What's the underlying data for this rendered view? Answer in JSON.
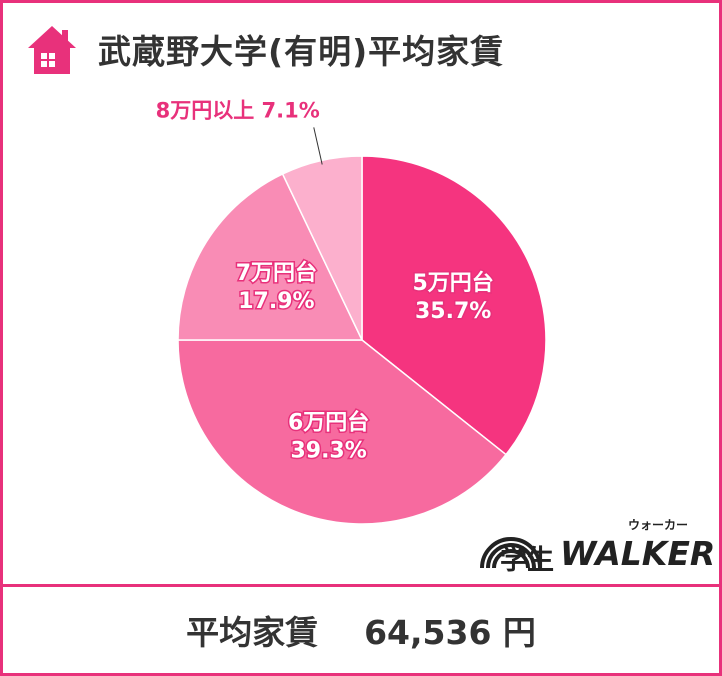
{
  "header": {
    "title": "武蔵野大学(有明)平均家賃",
    "icon": "house-icon"
  },
  "colors": {
    "frame": "#e8317b",
    "accent": "#e8317b"
  },
  "chart_data": {
    "type": "pie",
    "slices": [
      {
        "label": "5万円台",
        "value": 35.7,
        "value_label": "35.7%",
        "color": "#f5347f"
      },
      {
        "label": "6万円台",
        "value": 39.3,
        "value_label": "39.3%",
        "color": "#f76a9f"
      },
      {
        "label": "7万円台",
        "value": 17.9,
        "value_label": "17.9%",
        "color": "#f98cb5"
      },
      {
        "label": "8万円以上",
        "value": 7.1,
        "value_label": "7.1%",
        "color": "#fcb0cd"
      }
    ],
    "start_angle_deg": 0,
    "direction": "clockwise",
    "outside_label_slices": [
      "8万円以上"
    ]
  },
  "brand": {
    "kanji": "学生",
    "latin": "WALKER",
    "kana": "ウォーカー"
  },
  "footer": {
    "label": "平均家賃",
    "amount": "64,536 円"
  }
}
